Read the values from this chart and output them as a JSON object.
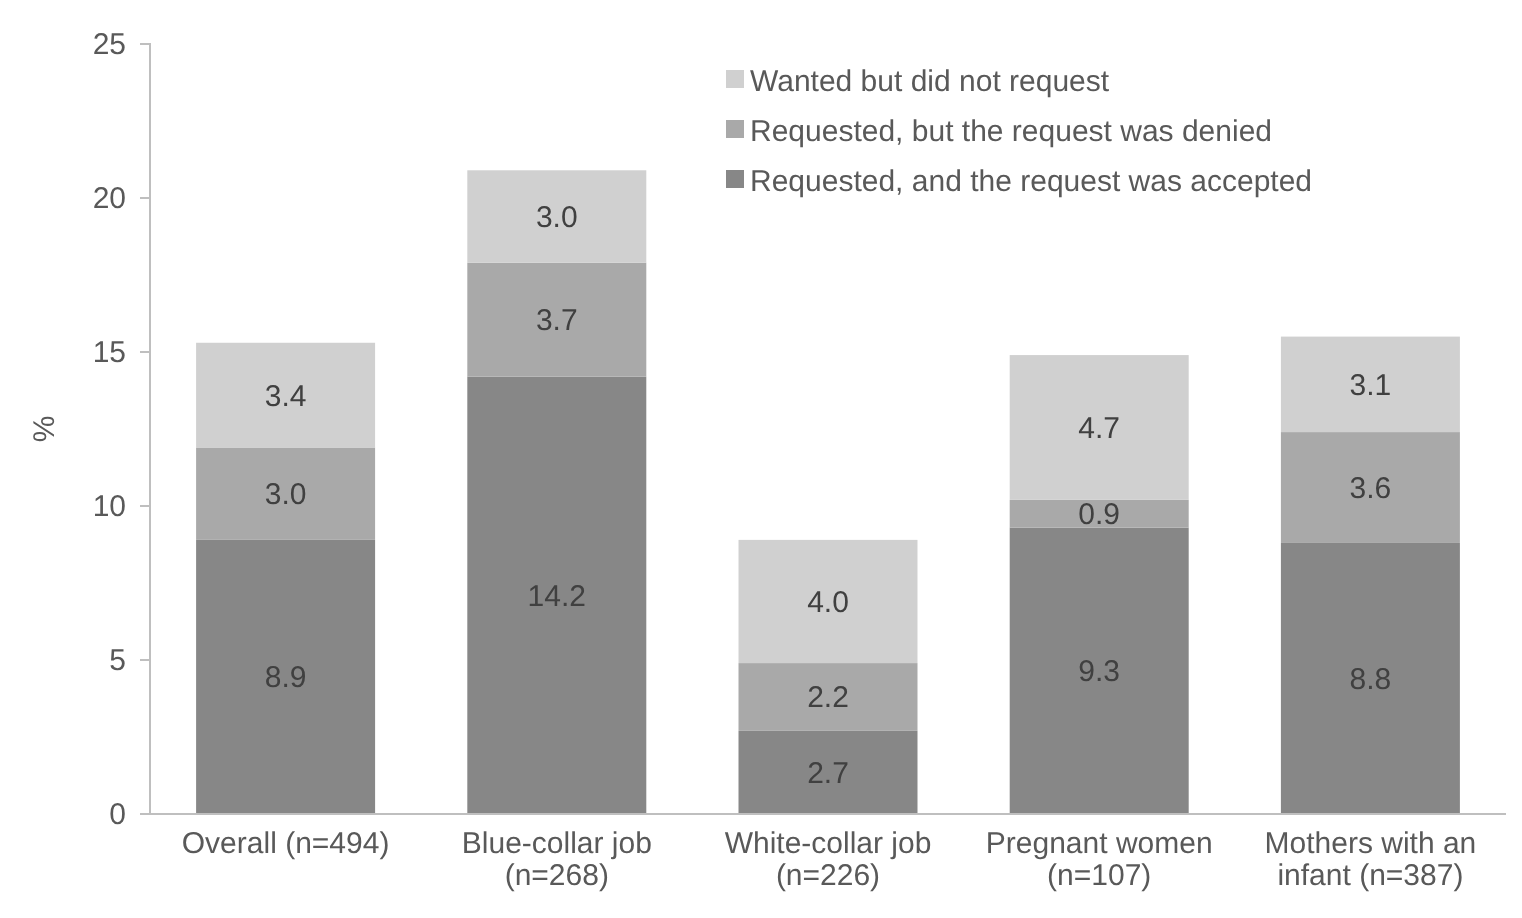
{
  "chart_data": {
    "type": "bar",
    "stacked": true,
    "ylabel": "%",
    "categories": [
      "Overall (n=494)",
      "Blue-collar job (n=268)",
      "White-collar job (n=226)",
      "Pregnant women (n=107)",
      "Mothers with an infant (n=387)"
    ],
    "series": [
      {
        "name": "Requested, and the request was accepted",
        "color": "#878787",
        "values": [
          8.9,
          14.2,
          2.7,
          9.3,
          8.8
        ],
        "value_labels": [
          "8.9",
          "14.2",
          "2.7",
          "9.3",
          "8.8"
        ]
      },
      {
        "name": "Requested, but the request was denied",
        "color": "#a9a9a9",
        "values": [
          3.0,
          3.7,
          2.2,
          0.9,
          3.6
        ],
        "value_labels": [
          "3.0",
          "3.7",
          "2.2",
          "0.9",
          "3.6"
        ]
      },
      {
        "name": "Wanted but did not request",
        "color": "#d0d0d0",
        "values": [
          3.4,
          3.0,
          4.0,
          4.7,
          3.1
        ],
        "value_labels": [
          "3.4",
          "3.0",
          "4.0",
          "4.7",
          "3.1"
        ]
      }
    ],
    "ylim": [
      0,
      25
    ],
    "yticks": [
      0,
      5,
      10,
      15,
      20,
      25
    ],
    "grid": false,
    "legend": "top right"
  }
}
